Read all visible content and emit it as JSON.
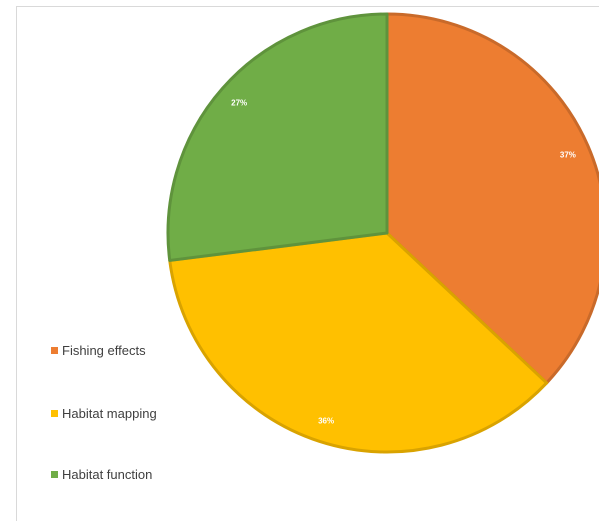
{
  "chart_data": {
    "type": "pie",
    "title": "",
    "slices": [
      {
        "label": "Fishing effects",
        "value": 37,
        "data_label": "37%",
        "color": "#ED7D31"
      },
      {
        "label": "Habitat mapping",
        "value": 36,
        "data_label": "36%",
        "color": "#FFC000"
      },
      {
        "label": "Habitat function",
        "value": 27,
        "data_label": "27%",
        "color": "#70AD47"
      }
    ],
    "legend_position": "left",
    "start_angle": "12 o'clock, clockwise"
  }
}
